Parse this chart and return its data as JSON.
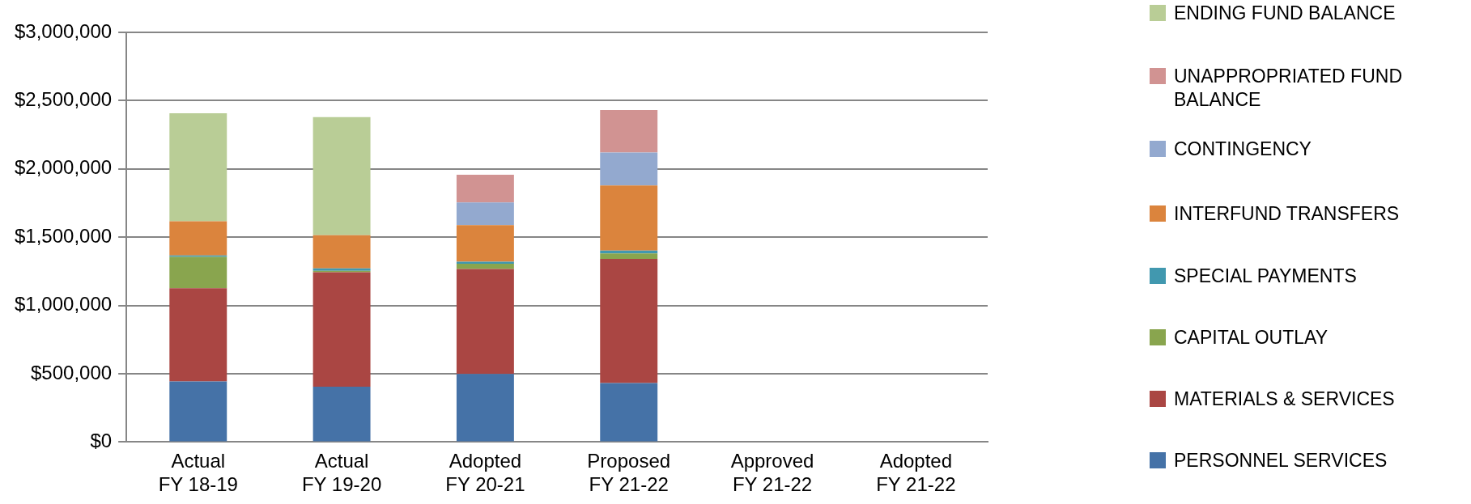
{
  "chart_data": {
    "type": "bar",
    "stacked": true,
    "categories": [
      "Actual FY 18-19",
      "Actual FY 19-20",
      "Adopted FY 20-21",
      "Proposed FY 21-22",
      "Approved FY 21-22",
      "Adopted FY 21-22"
    ],
    "series": [
      {
        "name": "PERSONNEL SERVICES",
        "color": "#4572a7",
        "values": [
          443000,
          405000,
          498000,
          432000,
          null,
          null
        ]
      },
      {
        "name": "MATERIALS & SERVICES",
        "color": "#aa4643",
        "values": [
          684000,
          839000,
          769000,
          909000,
          null,
          null
        ]
      },
      {
        "name": "CAPITAL OUTLAY",
        "color": "#89a54e",
        "values": [
          229000,
          10000,
          38000,
          40000,
          null,
          null
        ]
      },
      {
        "name": "SPECIAL PAYMENTS",
        "color": "#4198af",
        "values": [
          10000,
          17000,
          15000,
          21000,
          null,
          null
        ]
      },
      {
        "name": "INTERFUND TRANSFERS",
        "color": "#db843d",
        "values": [
          251000,
          244000,
          269000,
          477000,
          null,
          null
        ]
      },
      {
        "name": "CONTINGENCY",
        "color": "#93a9cf",
        "values": [
          null,
          null,
          165000,
          242000,
          null,
          null
        ]
      },
      {
        "name": "UNAPPROPRIATED FUND BALANCE",
        "color": "#d19392",
        "values": [
          null,
          null,
          204000,
          311000,
          null,
          null
        ]
      },
      {
        "name": "ENDING FUND BALANCE",
        "color": "#b9cd96",
        "values": [
          790000,
          864000,
          null,
          null,
          null,
          null
        ]
      }
    ],
    "ylim": [
      0,
      3000000
    ],
    "yticks": [
      {
        "value": 0,
        "label": "$0"
      },
      {
        "value": 500000,
        "label": "$500,000"
      },
      {
        "value": 1000000,
        "label": "$1,000,000"
      },
      {
        "value": 1500000,
        "label": "$1,500,000"
      },
      {
        "value": 2000000,
        "label": "$2,000,000"
      },
      {
        "value": 2500000,
        "label": "$2,500,000"
      },
      {
        "value": 3000000,
        "label": "$3,000,000"
      }
    ],
    "grid": "y",
    "legend": "right"
  }
}
